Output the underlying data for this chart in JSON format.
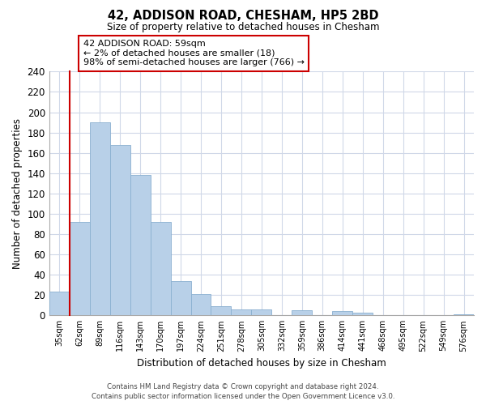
{
  "title": "42, ADDISON ROAD, CHESHAM, HP5 2BD",
  "subtitle": "Size of property relative to detached houses in Chesham",
  "xlabel": "Distribution of detached houses by size in Chesham",
  "ylabel": "Number of detached properties",
  "categories": [
    "35sqm",
    "62sqm",
    "89sqm",
    "116sqm",
    "143sqm",
    "170sqm",
    "197sqm",
    "224sqm",
    "251sqm",
    "278sqm",
    "305sqm",
    "332sqm",
    "359sqm",
    "386sqm",
    "414sqm",
    "441sqm",
    "468sqm",
    "495sqm",
    "522sqm",
    "549sqm",
    "576sqm"
  ],
  "values": [
    23,
    92,
    190,
    168,
    138,
    92,
    34,
    21,
    9,
    6,
    6,
    0,
    5,
    0,
    4,
    3,
    0,
    0,
    0,
    0,
    1
  ],
  "bar_color": "#b8d0e8",
  "bar_edge_color": "#8ab0d0",
  "highlight_color": "#cc0000",
  "ylim": [
    0,
    240
  ],
  "yticks": [
    0,
    20,
    40,
    60,
    80,
    100,
    120,
    140,
    160,
    180,
    200,
    220,
    240
  ],
  "annotation_box_text": "42 ADDISON ROAD: 59sqm\n← 2% of detached houses are smaller (18)\n98% of semi-detached houses are larger (766) →",
  "annotation_box_color": "#cc0000",
  "footer_line1": "Contains HM Land Registry data © Crown copyright and database right 2024.",
  "footer_line2": "Contains public sector information licensed under the Open Government Licence v3.0.",
  "grid_color": "#d0d8e8",
  "background_color": "#ffffff"
}
